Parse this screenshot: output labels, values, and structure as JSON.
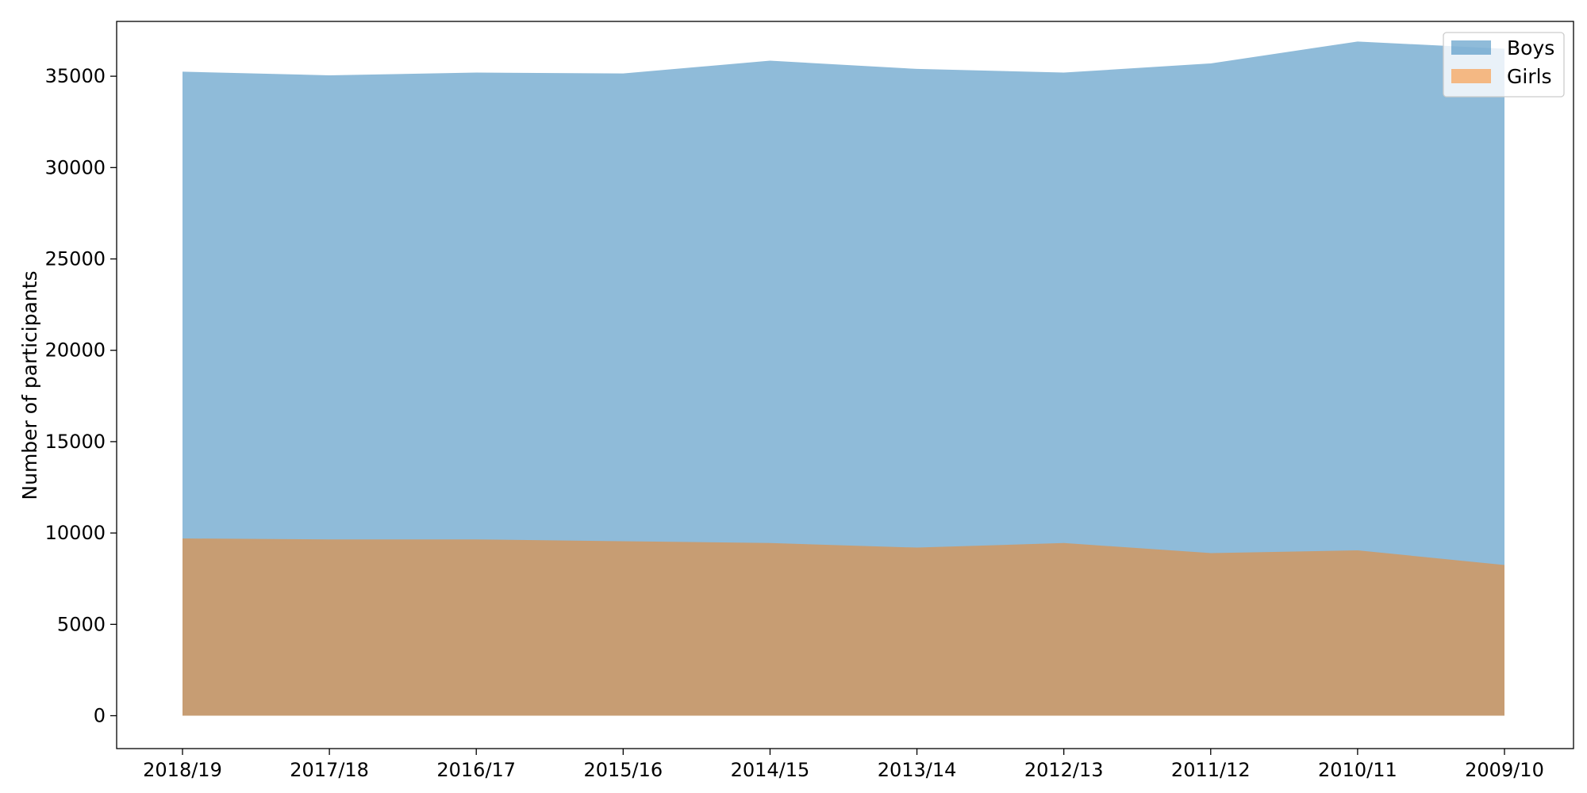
{
  "chart_data": {
    "type": "area",
    "title": "",
    "xlabel": "",
    "ylabel": "Number of participants",
    "categories": [
      "2018/19",
      "2017/18",
      "2016/17",
      "2015/16",
      "2014/15",
      "2013/14",
      "2012/13",
      "2011/12",
      "2010/11",
      "2009/10"
    ],
    "ylim": [
      -1800,
      38000
    ],
    "yticks": [
      0,
      5000,
      10000,
      15000,
      20000,
      25000,
      30000,
      35000
    ],
    "grid": false,
    "legend_position": "top-right",
    "series": [
      {
        "name": "Boys",
        "color": "#1f77b4",
        "opacity": 0.5,
        "values": [
          35250,
          35050,
          35200,
          35150,
          35850,
          35400,
          35200,
          35700,
          36900,
          36500
        ]
      },
      {
        "name": "Girls",
        "color": "#ff7f0e",
        "opacity": 0.5,
        "values": [
          9700,
          9650,
          9650,
          9550,
          9450,
          9200,
          9450,
          8900,
          9050,
          8250
        ]
      }
    ]
  }
}
